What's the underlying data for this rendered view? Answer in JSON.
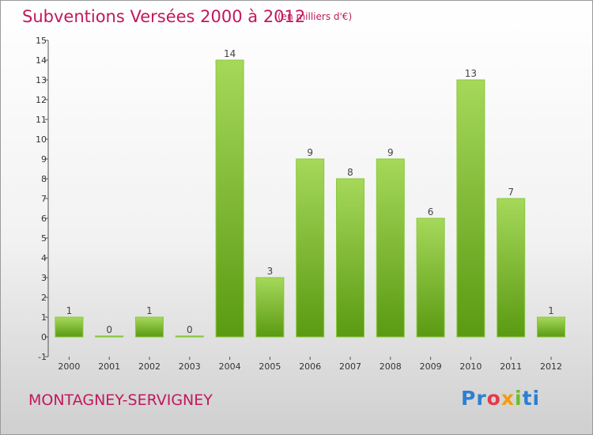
{
  "header": {
    "title": "Subventions Versées 2000 à 2012",
    "subtitle": "(en milliers d'€)"
  },
  "footer": {
    "place": "MONTAGNEY-SERVIGNEY",
    "logo": {
      "p1": "Pr",
      "p2": "o",
      "p3": "x",
      "p4": "i",
      "p5": "ti"
    }
  },
  "colors": {
    "bar_top": "#a6d85a",
    "bar_bottom": "#5a9a12",
    "bar_edge": "#88c93b",
    "title": "#c2185b"
  },
  "chart_data": {
    "type": "bar",
    "categories": [
      "2000",
      "2001",
      "2002",
      "2003",
      "2004",
      "2005",
      "2006",
      "2007",
      "2008",
      "2009",
      "2010",
      "2011",
      "2012"
    ],
    "values": [
      1,
      0,
      1,
      0,
      14,
      3,
      9,
      8,
      9,
      6,
      13,
      7,
      1
    ],
    "data_labels": [
      "1",
      "0",
      "1",
      "0",
      "14",
      "3",
      "9",
      "8",
      "9",
      "6",
      "13",
      "7",
      "1"
    ],
    "yticks": [
      "-1",
      "0",
      "1",
      "2",
      "3",
      "4",
      "5",
      "6",
      "7",
      "8",
      "9",
      "10",
      "11",
      "12",
      "13",
      "14",
      "15"
    ],
    "ylim": [
      -1,
      15
    ],
    "grid": false,
    "title": "Subventions Versées 2000 à 2012",
    "xlabel": "",
    "ylabel": ""
  }
}
